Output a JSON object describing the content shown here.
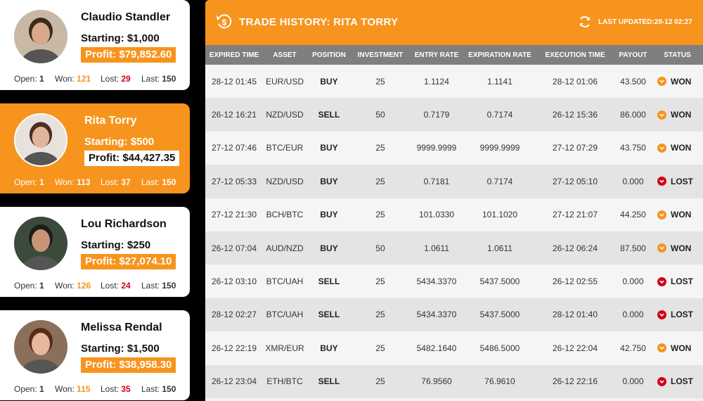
{
  "traders": [
    {
      "name": "Claudio Standler",
      "starting": "Starting: $1,000",
      "profit": "Profit: $79,852.60",
      "open_label": "Open:",
      "open": "1",
      "won_label": "Won:",
      "won": "121",
      "lost_label": "Lost:",
      "lost": "29",
      "last_label": "Last:",
      "last": "150",
      "active": false
    },
    {
      "name": "Rita Torry",
      "starting": "Starting: $500",
      "profit": "Profit: $44,427.35",
      "open_label": "Open:",
      "open": "1",
      "won_label": "Won:",
      "won": "113",
      "lost_label": "Lost:",
      "lost": "37",
      "last_label": "Last:",
      "last": "150",
      "active": true
    },
    {
      "name": "Lou Richardson",
      "starting": "Starting: $250",
      "profit": "Profit: $27,074.10",
      "open_label": "Open:",
      "open": "1",
      "won_label": "Won:",
      "won": "126",
      "lost_label": "Lost:",
      "lost": "24",
      "last_label": "Last:",
      "last": "150",
      "active": false
    },
    {
      "name": "Melissa Rendal",
      "starting": "Starting: $1,500",
      "profit": "Profit: $38,958.30",
      "open_label": "Open:",
      "open": "1",
      "won_label": "Won:",
      "won": "115",
      "lost_label": "Lost:",
      "lost": "35",
      "last_label": "Last:",
      "last": "150",
      "active": false
    }
  ],
  "history": {
    "title": "TRADE HISTORY: RITA TORRY",
    "last_updated": "LAST UPDATED:28-12 02:27",
    "header_icon": "dollar-back-icon",
    "refresh_icon": "refresh-icon",
    "columns": [
      "EXPIRED TIME",
      "ASSET",
      "POSITION",
      "INVESTMENT",
      "ENTRY RATE",
      "EXPIRATION RATE",
      "EXECUTION TIME",
      "PAYOUT",
      "STATUS"
    ],
    "rows": [
      [
        "28-12 01:45",
        "EUR/USD",
        "BUY",
        "25",
        "1.1124",
        "1.1141",
        "28-12 01:06",
        "43.500",
        "WON"
      ],
      [
        "26-12 16:21",
        "NZD/USD",
        "SELL",
        "50",
        "0.7179",
        "0.7174",
        "26-12 15:36",
        "86.000",
        "WON"
      ],
      [
        "27-12 07:46",
        "BTC/EUR",
        "BUY",
        "25",
        "9999.9999",
        "9999.9999",
        "27-12 07:29",
        "43.750",
        "WON"
      ],
      [
        "27-12 05:33",
        "NZD/USD",
        "BUY",
        "25",
        "0.7181",
        "0.7174",
        "27-12 05:10",
        "0.000",
        "LOST"
      ],
      [
        "27-12 21:30",
        "BCH/BTC",
        "BUY",
        "25",
        "101.0330",
        "101.1020",
        "27-12 21:07",
        "44.250",
        "WON"
      ],
      [
        "26-12 07:04",
        "AUD/NZD",
        "BUY",
        "50",
        "1.0611",
        "1.0611",
        "26-12 06:24",
        "87.500",
        "WON"
      ],
      [
        "26-12 03:10",
        "BTC/UAH",
        "SELL",
        "25",
        "5434.3370",
        "5437.5000",
        "26-12 02:55",
        "0.000",
        "LOST"
      ],
      [
        "28-12 02:27",
        "BTC/UAH",
        "SELL",
        "25",
        "5434.3370",
        "5437.5000",
        "28-12 01:40",
        "0.000",
        "LOST"
      ],
      [
        "26-12 22:19",
        "XMR/EUR",
        "BUY",
        "25",
        "5482.1640",
        "5486.5000",
        "26-12 22:04",
        "42.750",
        "WON"
      ],
      [
        "26-12 23:04",
        "ETH/BTC",
        "SELL",
        "25",
        "76.9560",
        "76.9610",
        "26-12 22:16",
        "0.000",
        "LOST"
      ]
    ]
  },
  "colors": {
    "accent": "#f7941d",
    "won": "#f7941d",
    "lost": "#d0021b",
    "header_bg": "#7f7f7f"
  }
}
